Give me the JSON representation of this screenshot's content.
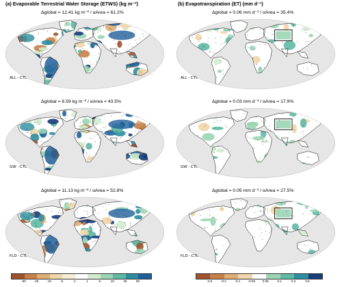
{
  "left_title": "(a) Evaporable Terrestrial Water Storage (ETWS) (kg m⁻²)",
  "right_title": "(b) Evapotranspiration (ET) (mm d⁻¹)",
  "left_stats": [
    "Δglobal = 12.41 kg m⁻² / αArea = 61.2%",
    "Δglobal = 6.59 kg m⁻² / αArea = 43.5%",
    "Δglobal = 11.13 kg m⁻² / αArea = 52.8%"
  ],
  "right_stats": [
    "Δglobal = 0.06 mm d⁻¹ / αArea = 35.4%",
    "Δglobal = 0.03 mm d⁻¹ / αArea = 17.9%",
    "Δglobal = 0.05 mm d⁻¹ / αArea = 27.5%"
  ],
  "experiments": [
    "ALL - CTL",
    "GW - CTL",
    "FLD - CTL"
  ],
  "colorbar_left_ticks": [
    "-50",
    "-25",
    "-10",
    "-5",
    "-1",
    "1",
    "5",
    "10",
    "25",
    "50"
  ],
  "colorbar_right_ticks": [
    "-0.5",
    "-0.2",
    "-0.1",
    "-0.05",
    "0.05",
    "0.1",
    "0.2",
    "0.5"
  ],
  "colors": {
    "ocean": "#e6e6e6",
    "neutral_land": "#ffffff",
    "brown_scale": [
      "#a0522d",
      "#c8804a",
      "#dfae74",
      "#f0d6a8"
    ],
    "green_blue_scale": [
      "#d2ecd0",
      "#9bd5b5",
      "#5fb9a4",
      "#2c8ea0",
      "#1f5f9a",
      "#163c7a"
    ],
    "stipple": "#222222"
  }
}
